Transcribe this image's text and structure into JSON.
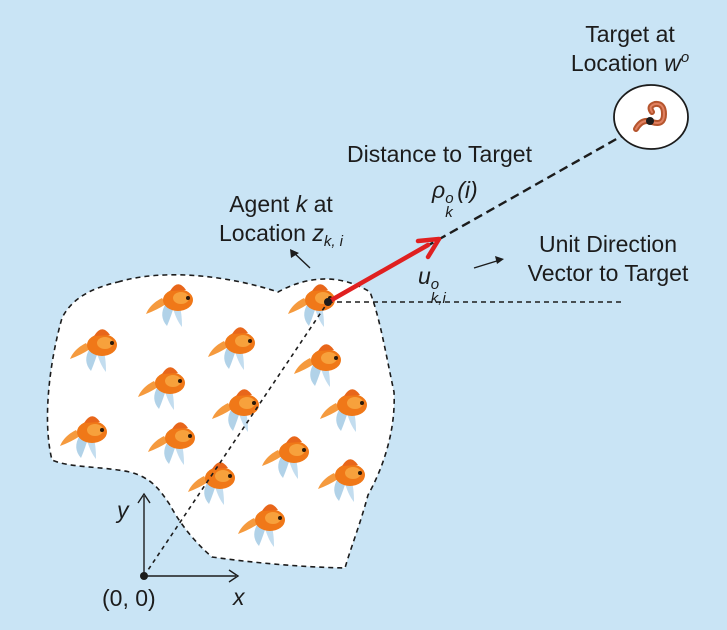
{
  "labels": {
    "target_line1": "Target at",
    "target_line2": "Location",
    "target_var": "w",
    "target_sup": "o",
    "distance_title": "Distance to Target",
    "distance_var": "ρ",
    "distance_sup": "o",
    "distance_sub": "k",
    "distance_arg": "(i)",
    "agent_line1_pre": "Agent",
    "agent_line1_var": "k",
    "agent_line1_post": "at",
    "agent_line2": "Location",
    "agent_var": "z",
    "agent_sub": "k, i",
    "udir_var": "u",
    "udir_sup": "o",
    "udir_sub": "k,i",
    "udir_line1": "Unit Direction",
    "udir_line2": "Vector to Target",
    "origin": "(0, 0)",
    "axis_x": "x",
    "axis_y": "y"
  },
  "colors": {
    "background": "#c9e4f5",
    "arrow": "#e02020",
    "region_fill": "#ffffff",
    "fish_body": "#f07818",
    "fish_fin": "#a9cde6",
    "worm": "#b5552e"
  },
  "icons": {
    "fish": "goldfish-icon",
    "worm": "worm-icon"
  }
}
